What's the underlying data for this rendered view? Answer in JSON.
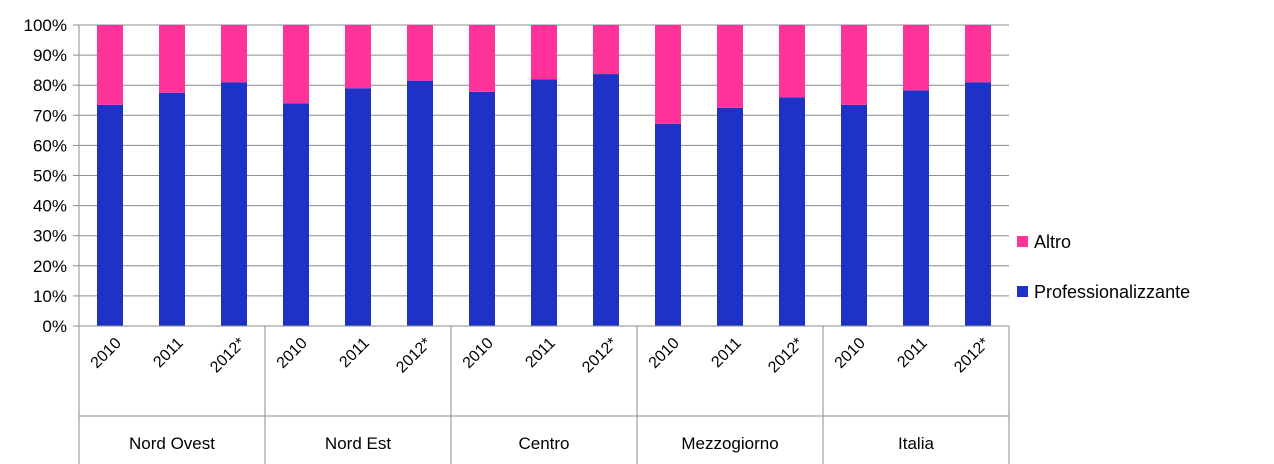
{
  "chart_data": {
    "type": "bar",
    "stacked": true,
    "groups": [
      "Nord Ovest",
      "Nord Est",
      "Centro",
      "Mezzogiorno",
      "Italia"
    ],
    "categories": [
      "2010",
      "2011",
      "2012*",
      "2010",
      "2011",
      "2012*",
      "2010",
      "2011",
      "2012*",
      "2010",
      "2011",
      "2012*",
      "2010",
      "2011",
      "2012*"
    ],
    "series": [
      {
        "name": "Professionalizzante",
        "color": "#1f32c8",
        "values": [
          73.5,
          77.5,
          81,
          74,
          79,
          81.5,
          77.8,
          82,
          83.7,
          67.2,
          72.5,
          76,
          73.5,
          78.3,
          81
        ]
      },
      {
        "name": "Altro",
        "color": "#ff3399",
        "values": [
          26.5,
          22.5,
          19,
          26,
          21,
          18.5,
          22.2,
          18,
          16.3,
          32.8,
          27.5,
          24,
          26.5,
          21.7,
          19
        ]
      }
    ],
    "y_tick_labels": [
      "0%",
      "10%",
      "20%",
      "30%",
      "40%",
      "50%",
      "60%",
      "70%",
      "80%",
      "90%",
      "100%"
    ],
    "ylim": [
      0,
      100
    ],
    "grid": true,
    "legend_position": "right"
  }
}
